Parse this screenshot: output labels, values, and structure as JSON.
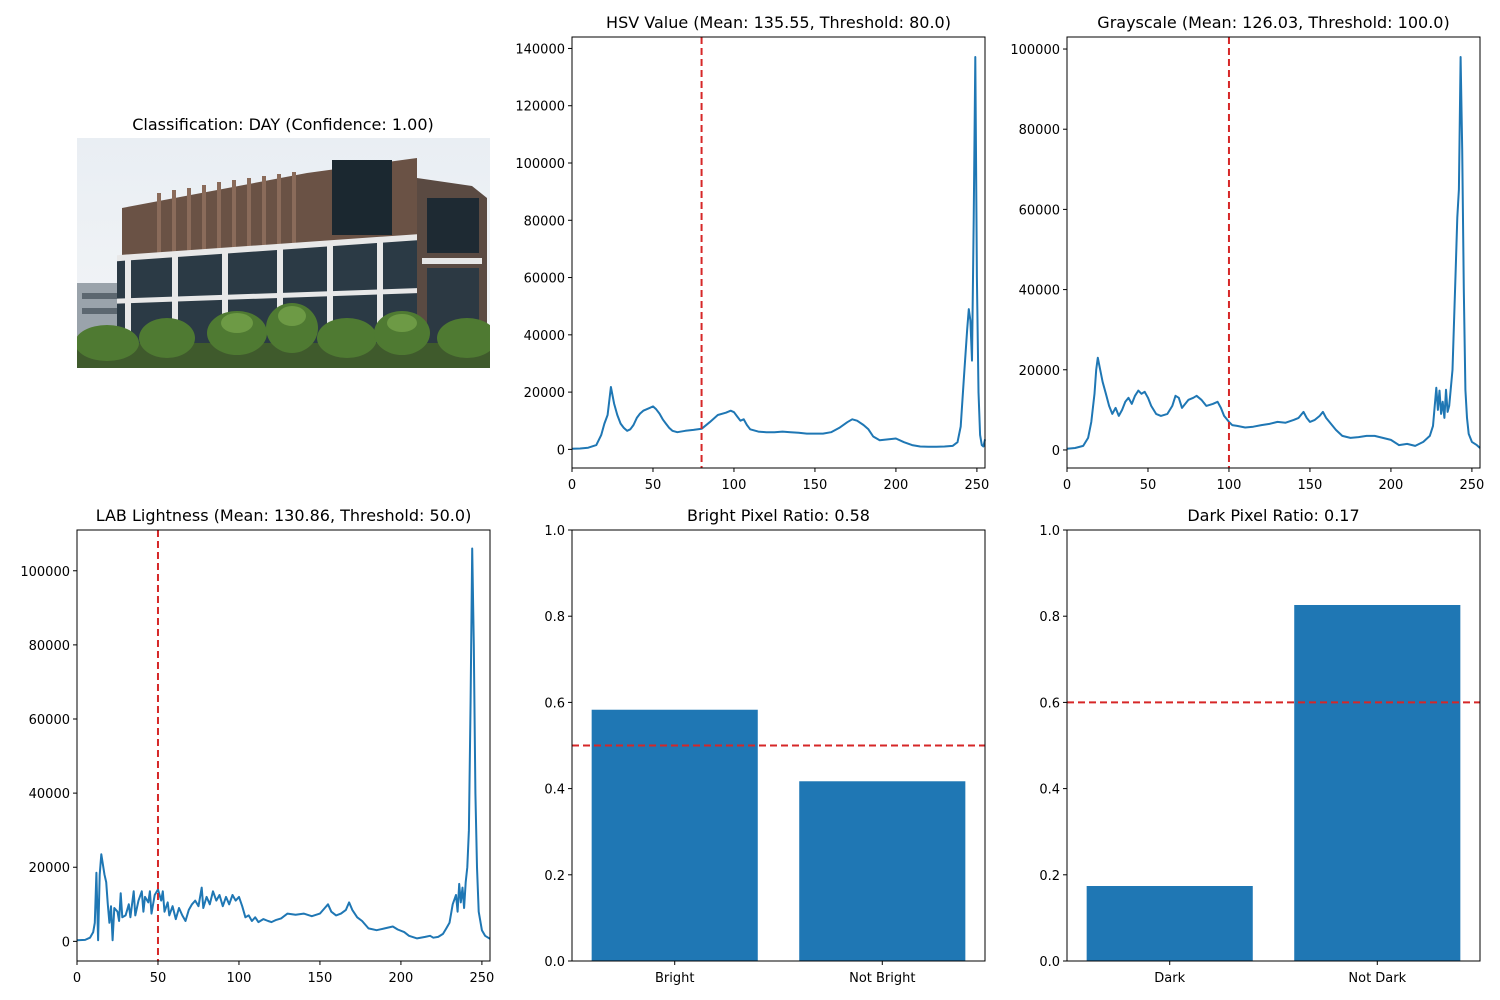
{
  "photo": {
    "title": "Classification: DAY (Confidence: 1.00)"
  },
  "colors": {
    "line": "#1f77b4",
    "bar": "#1f77b4",
    "threshold": "#d62728"
  },
  "chart_data": [
    {
      "type": "line",
      "title": "HSV Value (Mean: 135.55, Threshold: 80.0)",
      "xlim": [
        0,
        255
      ],
      "ylim": [
        -6500,
        144000
      ],
      "xticks": [
        0,
        50,
        100,
        150,
        200,
        250
      ],
      "yticks": [
        0,
        20000,
        40000,
        60000,
        80000,
        100000,
        120000,
        140000
      ],
      "threshold_x": 80,
      "points": [
        [
          0,
          200
        ],
        [
          5,
          300
        ],
        [
          10,
          600
        ],
        [
          15,
          1500
        ],
        [
          18,
          5000
        ],
        [
          20,
          9000
        ],
        [
          22,
          12000
        ],
        [
          24,
          21800
        ],
        [
          26,
          16000
        ],
        [
          28,
          12000
        ],
        [
          30,
          9000
        ],
        [
          32,
          7500
        ],
        [
          34,
          6500
        ],
        [
          36,
          7000
        ],
        [
          38,
          8500
        ],
        [
          40,
          11000
        ],
        [
          42,
          12500
        ],
        [
          44,
          13500
        ],
        [
          46,
          14000
        ],
        [
          48,
          14500
        ],
        [
          50,
          15000
        ],
        [
          52,
          14000
        ],
        [
          54,
          12500
        ],
        [
          56,
          10500
        ],
        [
          58,
          9000
        ],
        [
          60,
          7500
        ],
        [
          62,
          6500
        ],
        [
          65,
          6000
        ],
        [
          70,
          6500
        ],
        [
          75,
          6800
        ],
        [
          80,
          7200
        ],
        [
          85,
          9500
        ],
        [
          90,
          12000
        ],
        [
          95,
          12800
        ],
        [
          98,
          13500
        ],
        [
          100,
          13000
        ],
        [
          102,
          11500
        ],
        [
          104,
          10000
        ],
        [
          106,
          10500
        ],
        [
          108,
          8500
        ],
        [
          110,
          7000
        ],
        [
          115,
          6200
        ],
        [
          120,
          6000
        ],
        [
          125,
          6000
        ],
        [
          130,
          6200
        ],
        [
          135,
          6000
        ],
        [
          140,
          5800
        ],
        [
          145,
          5500
        ],
        [
          150,
          5500
        ],
        [
          155,
          5500
        ],
        [
          160,
          6000
        ],
        [
          165,
          7500
        ],
        [
          170,
          9500
        ],
        [
          173,
          10500
        ],
        [
          176,
          10000
        ],
        [
          180,
          8500
        ],
        [
          183,
          7000
        ],
        [
          186,
          4500
        ],
        [
          190,
          3200
        ],
        [
          195,
          3500
        ],
        [
          200,
          3800
        ],
        [
          205,
          2500
        ],
        [
          210,
          1500
        ],
        [
          215,
          1000
        ],
        [
          220,
          900
        ],
        [
          225,
          900
        ],
        [
          230,
          1000
        ],
        [
          235,
          1200
        ],
        [
          238,
          2500
        ],
        [
          240,
          8000
        ],
        [
          242,
          25000
        ],
        [
          244,
          42000
        ],
        [
          245,
          49000
        ],
        [
          246,
          45000
        ],
        [
          247,
          31000
        ],
        [
          248,
          80000
        ],
        [
          249,
          137000
        ],
        [
          250,
          60000
        ],
        [
          251,
          20000
        ],
        [
          252,
          5000
        ],
        [
          253,
          1500
        ],
        [
          254,
          1000
        ],
        [
          255,
          3500
        ]
      ]
    },
    {
      "type": "line",
      "title": "Grayscale (Mean: 126.03, Threshold: 100.0)",
      "xlim": [
        0,
        255
      ],
      "ylim": [
        -4500,
        103000
      ],
      "xticks": [
        0,
        50,
        100,
        150,
        200,
        250
      ],
      "yticks": [
        0,
        20000,
        40000,
        60000,
        80000,
        100000
      ],
      "threshold_x": 100,
      "points": [
        [
          0,
          300
        ],
        [
          5,
          500
        ],
        [
          10,
          1000
        ],
        [
          13,
          3000
        ],
        [
          15,
          7000
        ],
        [
          17,
          14000
        ],
        [
          18,
          20000
        ],
        [
          19,
          23000
        ],
        [
          20,
          21000
        ],
        [
          22,
          17000
        ],
        [
          24,
          14000
        ],
        [
          26,
          11000
        ],
        [
          28,
          9000
        ],
        [
          30,
          10500
        ],
        [
          32,
          8500
        ],
        [
          34,
          10000
        ],
        [
          36,
          12000
        ],
        [
          38,
          13000
        ],
        [
          40,
          11500
        ],
        [
          42,
          13500
        ],
        [
          44,
          14800
        ],
        [
          46,
          14000
        ],
        [
          48,
          14500
        ],
        [
          50,
          13000
        ],
        [
          52,
          11000
        ],
        [
          55,
          9000
        ],
        [
          58,
          8500
        ],
        [
          62,
          9000
        ],
        [
          65,
          11000
        ],
        [
          67,
          13500
        ],
        [
          69,
          13000
        ],
        [
          71,
          10500
        ],
        [
          73,
          11500
        ],
        [
          75,
          12500
        ],
        [
          78,
          13000
        ],
        [
          80,
          13500
        ],
        [
          83,
          12500
        ],
        [
          86,
          11000
        ],
        [
          90,
          11500
        ],
        [
          93,
          12000
        ],
        [
          95,
          10500
        ],
        [
          97,
          8500
        ],
        [
          100,
          7000
        ],
        [
          102,
          6200
        ],
        [
          105,
          6000
        ],
        [
          110,
          5600
        ],
        [
          115,
          5800
        ],
        [
          120,
          6200
        ],
        [
          125,
          6500
        ],
        [
          130,
          7000
        ],
        [
          135,
          6800
        ],
        [
          140,
          7500
        ],
        [
          143,
          8000
        ],
        [
          146,
          9500
        ],
        [
          148,
          8000
        ],
        [
          150,
          7000
        ],
        [
          153,
          7500
        ],
        [
          156,
          8500
        ],
        [
          158,
          9500
        ],
        [
          160,
          8000
        ],
        [
          163,
          6500
        ],
        [
          166,
          5000
        ],
        [
          170,
          3500
        ],
        [
          175,
          3000
        ],
        [
          180,
          3200
        ],
        [
          185,
          3500
        ],
        [
          190,
          3500
        ],
        [
          195,
          3000
        ],
        [
          200,
          2500
        ],
        [
          205,
          1200
        ],
        [
          210,
          1500
        ],
        [
          215,
          1000
        ],
        [
          220,
          2000
        ],
        [
          224,
          3500
        ],
        [
          226,
          6000
        ],
        [
          228,
          15500
        ],
        [
          229,
          10000
        ],
        [
          230,
          14800
        ],
        [
          231,
          9000
        ],
        [
          232,
          12000
        ],
        [
          233,
          8000
        ],
        [
          234,
          15000
        ],
        [
          235,
          9500
        ],
        [
          236,
          11000
        ],
        [
          238,
          20000
        ],
        [
          240,
          45000
        ],
        [
          241,
          58000
        ],
        [
          242,
          65000
        ],
        [
          243,
          98000
        ],
        [
          244,
          75000
        ],
        [
          245,
          40000
        ],
        [
          246,
          15000
        ],
        [
          247,
          8000
        ],
        [
          248,
          4000
        ],
        [
          250,
          2000
        ],
        [
          253,
          1200
        ],
        [
          255,
          500
        ]
      ]
    },
    {
      "type": "line",
      "title": "LAB Lightness (Mean: 130.86, Threshold: 50.0)",
      "xlim": [
        0,
        255
      ],
      "ylim": [
        -5300,
        111000
      ],
      "xticks": [
        0,
        50,
        100,
        150,
        200,
        250
      ],
      "yticks": [
        0,
        20000,
        40000,
        60000,
        80000,
        100000
      ],
      "threshold_x": 50,
      "points": [
        [
          0,
          300
        ],
        [
          5,
          400
        ],
        [
          8,
          1000
        ],
        [
          10,
          2500
        ],
        [
          11,
          5000
        ],
        [
          12,
          18500
        ],
        [
          13,
          300
        ],
        [
          14,
          18000
        ],
        [
          15,
          23500
        ],
        [
          17,
          18000
        ],
        [
          18,
          16000
        ],
        [
          19,
          10000
        ],
        [
          20,
          5000
        ],
        [
          21,
          9500
        ],
        [
          22,
          300
        ],
        [
          23,
          9000
        ],
        [
          25,
          8000
        ],
        [
          26,
          5500
        ],
        [
          27,
          13000
        ],
        [
          28,
          6500
        ],
        [
          30,
          7000
        ],
        [
          32,
          10000
        ],
        [
          33,
          6500
        ],
        [
          35,
          13500
        ],
        [
          36,
          7000
        ],
        [
          38,
          11000
        ],
        [
          40,
          13500
        ],
        [
          41,
          8000
        ],
        [
          42,
          12000
        ],
        [
          44,
          10500
        ],
        [
          45,
          13500
        ],
        [
          46,
          7500
        ],
        [
          48,
          12500
        ],
        [
          50,
          14000
        ],
        [
          52,
          11000
        ],
        [
          53,
          13500
        ],
        [
          54,
          8000
        ],
        [
          56,
          10500
        ],
        [
          57,
          7000
        ],
        [
          59,
          9500
        ],
        [
          61,
          6000
        ],
        [
          63,
          9000
        ],
        [
          65,
          7000
        ],
        [
          67,
          5500
        ],
        [
          69,
          8500
        ],
        [
          71,
          10000
        ],
        [
          73,
          11000
        ],
        [
          75,
          9500
        ],
        [
          77,
          14500
        ],
        [
          78,
          9000
        ],
        [
          80,
          12000
        ],
        [
          82,
          10000
        ],
        [
          84,
          13500
        ],
        [
          86,
          11000
        ],
        [
          88,
          12500
        ],
        [
          90,
          9500
        ],
        [
          92,
          12000
        ],
        [
          94,
          10000
        ],
        [
          96,
          12500
        ],
        [
          98,
          11000
        ],
        [
          100,
          12000
        ],
        [
          102,
          9500
        ],
        [
          104,
          6500
        ],
        [
          106,
          7000
        ],
        [
          108,
          5500
        ],
        [
          110,
          6500
        ],
        [
          112,
          5200
        ],
        [
          115,
          6000
        ],
        [
          118,
          5500
        ],
        [
          120,
          5200
        ],
        [
          123,
          5800
        ],
        [
          126,
          6200
        ],
        [
          130,
          7500
        ],
        [
          135,
          7200
        ],
        [
          140,
          7500
        ],
        [
          145,
          6800
        ],
        [
          150,
          7500
        ],
        [
          153,
          9000
        ],
        [
          155,
          10000
        ],
        [
          157,
          8000
        ],
        [
          160,
          7000
        ],
        [
          163,
          7500
        ],
        [
          166,
          8500
        ],
        [
          168,
          10500
        ],
        [
          170,
          8500
        ],
        [
          173,
          6500
        ],
        [
          176,
          5500
        ],
        [
          180,
          3500
        ],
        [
          185,
          3000
        ],
        [
          190,
          3500
        ],
        [
          195,
          4000
        ],
        [
          198,
          3200
        ],
        [
          202,
          2500
        ],
        [
          205,
          1500
        ],
        [
          210,
          800
        ],
        [
          215,
          1200
        ],
        [
          218,
          1500
        ],
        [
          220,
          1000
        ],
        [
          223,
          1200
        ],
        [
          226,
          2000
        ],
        [
          228,
          3500
        ],
        [
          230,
          5000
        ],
        [
          232,
          10000
        ],
        [
          234,
          12500
        ],
        [
          235,
          8000
        ],
        [
          236,
          15500
        ],
        [
          237,
          10500
        ],
        [
          238,
          14500
        ],
        [
          239,
          9000
        ],
        [
          240,
          16000
        ],
        [
          241,
          20000
        ],
        [
          242,
          30000
        ],
        [
          243,
          65000
        ],
        [
          244,
          106000
        ],
        [
          245,
          80000
        ],
        [
          246,
          40000
        ],
        [
          247,
          20000
        ],
        [
          248,
          8000
        ],
        [
          250,
          3000
        ],
        [
          252,
          1500
        ],
        [
          255,
          700
        ]
      ]
    },
    {
      "type": "bar",
      "title": "Bright Pixel Ratio: 0.58",
      "categories": [
        "Bright",
        "Not Bright"
      ],
      "values": [
        0.583,
        0.417
      ],
      "ylim": [
        0,
        1.0
      ],
      "yticks": [
        0.0,
        0.2,
        0.4,
        0.6,
        0.8,
        1.0
      ],
      "threshold_y": 0.5
    },
    {
      "type": "bar",
      "title": "Dark Pixel Ratio: 0.17",
      "categories": [
        "Dark",
        "Not Dark"
      ],
      "values": [
        0.174,
        0.826
      ],
      "ylim": [
        0,
        1.0
      ],
      "yticks": [
        0.0,
        0.2,
        0.4,
        0.6,
        0.8,
        1.0
      ],
      "threshold_y": 0.6
    }
  ]
}
